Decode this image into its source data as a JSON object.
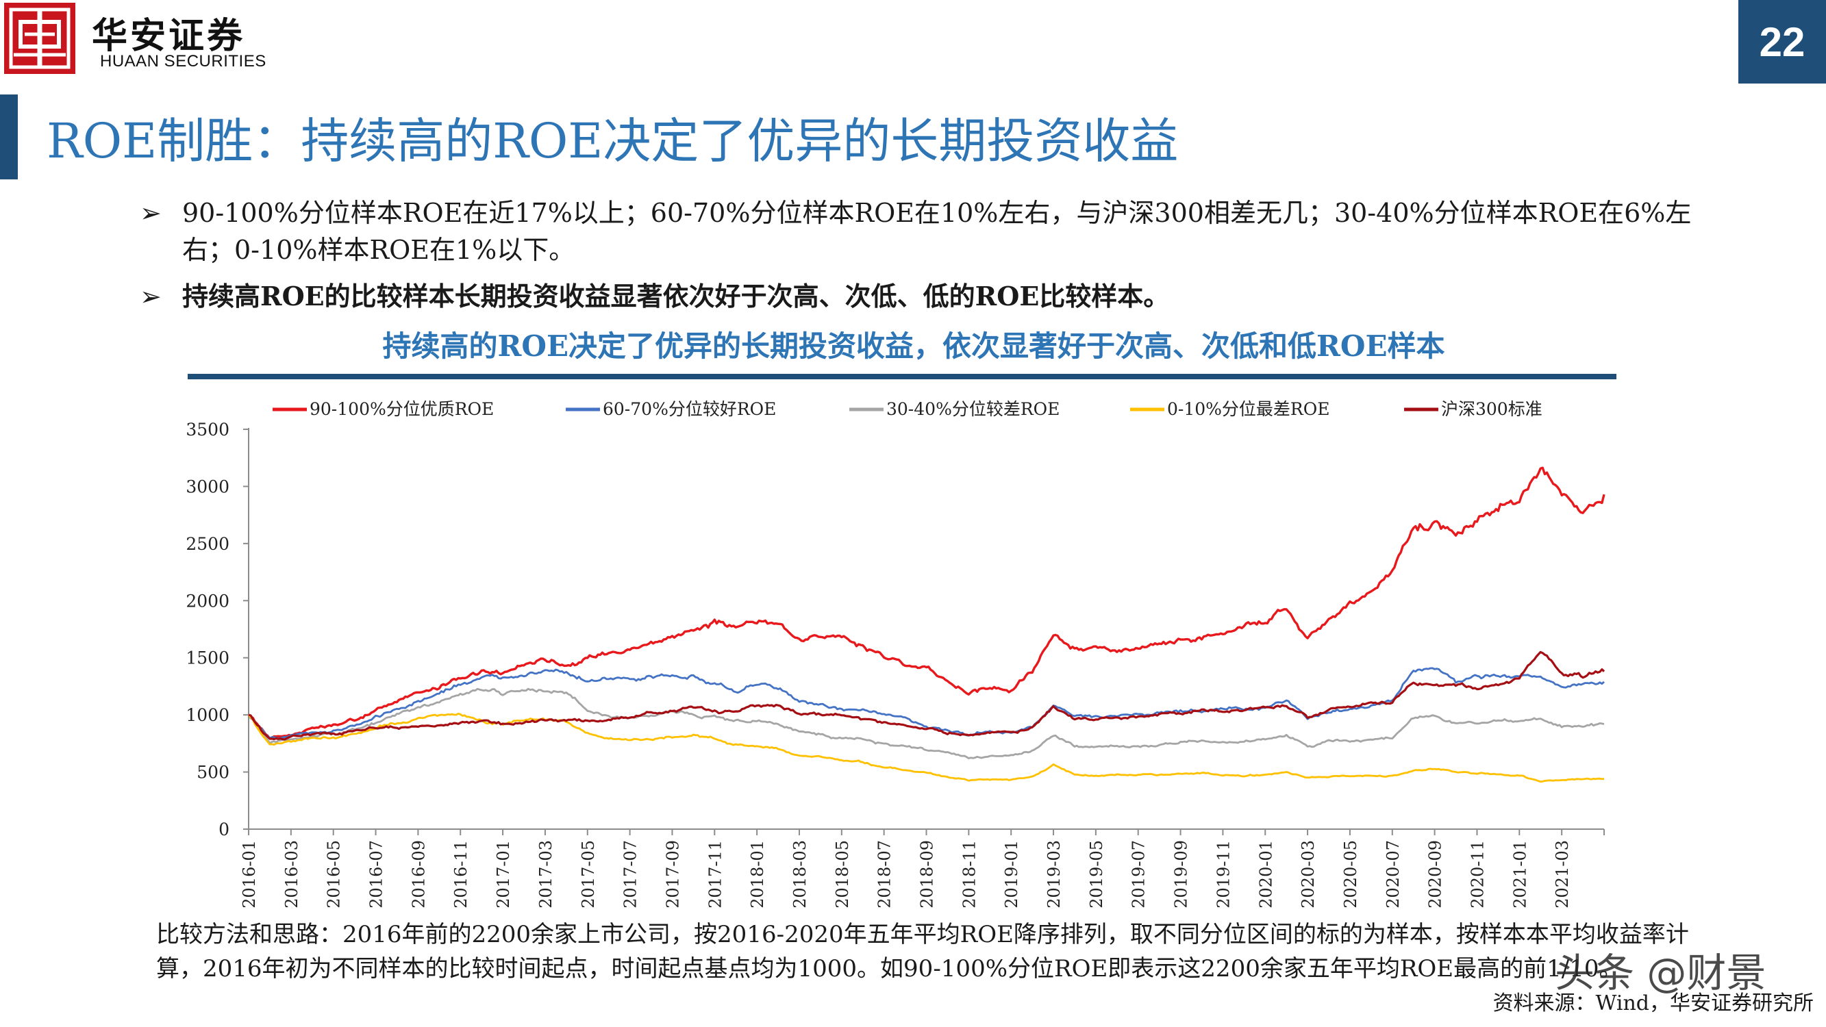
{
  "header": {
    "logo_cn": "华安证券",
    "logo_en": "HUAAN SECURITIES",
    "page_number": "22"
  },
  "title": "ROE制胜：持续高的ROE决定了优异的长期投资收益",
  "bullets": [
    {
      "marker": "➢",
      "text": "90-100%分位样本ROE在近17%以上；60-70%分位样本ROE在10%左右，与沪深300相差无几；30-40%分位样本ROE在6%左右；0-10%样本ROE在1%以下。"
    },
    {
      "marker": "➢",
      "text": "持续高ROE的比较样本长期投资收益显著依次好于次高、次低、低的ROE比较样本。"
    }
  ],
  "chart_heading": "持续高的ROE决定了优异的长期投资收益，依次显著好于次高、次低和低ROE样本",
  "chart_data": {
    "type": "line",
    "title": "",
    "xlabel": "",
    "ylabel": "",
    "ylim": [
      0,
      3500
    ],
    "yticks": [
      0,
      500,
      1000,
      1500,
      2000,
      2500,
      3000,
      3500
    ],
    "legend_position": "top",
    "grid": false,
    "x_tick_labels": [
      "2016-01",
      "2016-03",
      "2016-05",
      "2016-07",
      "2016-09",
      "2016-11",
      "2017-01",
      "2017-03",
      "2017-05",
      "2017-07",
      "2017-09",
      "2017-11",
      "2018-01",
      "2018-03",
      "2018-05",
      "2018-07",
      "2018-09",
      "2018-11",
      "2019-01",
      "2019-03",
      "2019-05",
      "2019-07",
      "2019-09",
      "2019-11",
      "2020-01",
      "2020-03",
      "2020-05",
      "2020-07",
      "2020-09",
      "2020-11",
      "2021-01",
      "2021-03"
    ],
    "x": [
      "2016-01",
      "2016-02",
      "2016-03",
      "2016-04",
      "2016-05",
      "2016-06",
      "2016-07",
      "2016-08",
      "2016-09",
      "2016-10",
      "2016-11",
      "2016-12",
      "2017-01",
      "2017-02",
      "2017-03",
      "2017-04",
      "2017-05",
      "2017-06",
      "2017-07",
      "2017-08",
      "2017-09",
      "2017-10",
      "2017-11",
      "2017-12",
      "2018-01",
      "2018-02",
      "2018-03",
      "2018-04",
      "2018-05",
      "2018-06",
      "2018-07",
      "2018-08",
      "2018-09",
      "2018-10",
      "2018-11",
      "2018-12",
      "2019-01",
      "2019-02",
      "2019-03",
      "2019-04",
      "2019-05",
      "2019-06",
      "2019-07",
      "2019-08",
      "2019-09",
      "2019-10",
      "2019-11",
      "2019-12",
      "2020-01",
      "2020-02",
      "2020-03",
      "2020-04",
      "2020-05",
      "2020-06",
      "2020-07",
      "2020-08",
      "2020-09",
      "2020-10",
      "2020-11",
      "2020-12",
      "2021-01",
      "2021-02",
      "2021-03",
      "2021-04",
      "2021-05"
    ],
    "series": [
      {
        "name": "90-100%分位优质ROE",
        "color": "#e8191c",
        "width": 3.4,
        "values": [
          1000,
          800,
          830,
          880,
          900,
          950,
          1050,
          1120,
          1180,
          1240,
          1330,
          1380,
          1360,
          1440,
          1490,
          1450,
          1480,
          1560,
          1580,
          1640,
          1690,
          1750,
          1800,
          1760,
          1820,
          1780,
          1700,
          1710,
          1660,
          1600,
          1520,
          1460,
          1400,
          1300,
          1200,
          1230,
          1220,
          1380,
          1700,
          1580,
          1560,
          1540,
          1560,
          1590,
          1650,
          1680,
          1720,
          1790,
          1850,
          1940,
          1700,
          1820,
          1960,
          2060,
          2260,
          2650,
          2700,
          2600,
          2730,
          2760,
          2900,
          3200,
          2950,
          2820,
          2930
        ]
      },
      {
        "name": "60-70%分位较好ROE",
        "color": "#4472c4",
        "width": 2.8,
        "values": [
          1000,
          790,
          810,
          850,
          870,
          900,
          980,
          1050,
          1120,
          1180,
          1270,
          1330,
          1310,
          1380,
          1420,
          1400,
          1300,
          1310,
          1310,
          1320,
          1340,
          1330,
          1270,
          1220,
          1270,
          1240,
          1120,
          1090,
          1050,
          1050,
          1000,
          980,
          900,
          860,
          830,
          860,
          840,
          900,
          1080,
          990,
          980,
          980,
          1010,
          1020,
          1030,
          1050,
          1060,
          1050,
          1070,
          1120,
          960,
          1030,
          1050,
          1080,
          1110,
          1380,
          1400,
          1290,
          1310,
          1330,
          1340,
          1330,
          1250,
          1270,
          1290
        ]
      },
      {
        "name": "30-40%分位较差ROE",
        "color": "#a5a5a5",
        "width": 2.8,
        "values": [
          1000,
          760,
          790,
          820,
          840,
          870,
          940,
          1010,
          1060,
          1110,
          1180,
          1230,
          1200,
          1220,
          1220,
          1190,
          1030,
          1000,
          980,
          1010,
          1050,
          1020,
          980,
          940,
          950,
          920,
          850,
          830,
          790,
          780,
          740,
          720,
          690,
          660,
          620,
          640,
          640,
          680,
          820,
          730,
          720,
          720,
          730,
          740,
          760,
          770,
          760,
          770,
          790,
          830,
          720,
          760,
          770,
          780,
          790,
          970,
          980,
          920,
          930,
          940,
          950,
          960,
          900,
          900,
          920
        ]
      },
      {
        "name": "0-10%分位最差ROE",
        "color": "#ffc000",
        "width": 2.8,
        "values": [
          1000,
          740,
          760,
          790,
          800,
          830,
          890,
          930,
          960,
          990,
          1000,
          950,
          920,
          950,
          960,
          950,
          850,
          800,
          780,
          790,
          810,
          820,
          790,
          740,
          730,
          700,
          640,
          630,
          610,
          590,
          540,
          520,
          500,
          470,
          430,
          440,
          430,
          450,
          560,
          480,
          470,
          470,
          470,
          470,
          480,
          490,
          480,
          470,
          480,
          500,
          450,
          460,
          470,
          470,
          470,
          510,
          530,
          500,
          480,
          480,
          470,
          420,
          430,
          440,
          440
        ]
      },
      {
        "name": "沪深300标准",
        "color": "#a50f14",
        "width": 3.2,
        "values": [
          1000,
          790,
          800,
          830,
          840,
          860,
          880,
          890,
          900,
          910,
          920,
          940,
          920,
          930,
          950,
          960,
          940,
          960,
          990,
          1020,
          1040,
          1060,
          1040,
          1020,
          1080,
          1100,
          1020,
          1000,
          980,
          960,
          930,
          900,
          880,
          840,
          820,
          860,
          850,
          880,
          1080,
          970,
          960,
          970,
          980,
          1000,
          1010,
          1030,
          1040,
          1050,
          1060,
          1080,
          980,
          1040,
          1080,
          1100,
          1120,
          1300,
          1260,
          1240,
          1260,
          1280,
          1320,
          1560,
          1380,
          1350,
          1380
        ]
      }
    ]
  },
  "footer": {
    "method": "比较方法和思路：2016年前的2200余家上市公司，按2016-2020年五年平均ROE降序排列，取不同分位区间的标的为样本，按样本本平均收益率计算，2016年初为不同样本的比较时间起点，时间起点基点均为1000。如90-100%分位ROE即表示这2200余家五年平均ROE最高的前1/10。",
    "source": "资料来源：Wind，华安证券研究所",
    "watermark": "头条 @财景"
  }
}
